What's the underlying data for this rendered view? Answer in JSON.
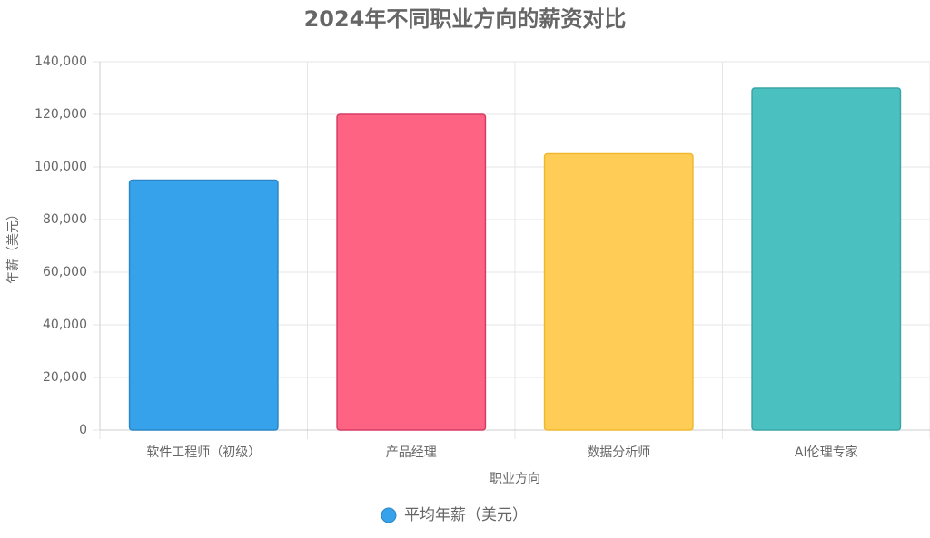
{
  "chart_data": {
    "type": "bar",
    "title": "2024年不同职业方向的薪资对比",
    "xlabel": "职业方向",
    "ylabel": "年薪（美元）",
    "categories": [
      "软件工程师（初级）",
      "产品经理",
      "数据分析师",
      "AI伦理专家"
    ],
    "series": [
      {
        "name": "平均年薪（美元）",
        "color": "#36a2eb",
        "colors": [
          "#36a2eb",
          "#ff6384",
          "#ffcd56",
          "#4bc0c0"
        ],
        "border_colors": [
          "#2b86c5",
          "#d63c63",
          "#f0b82e",
          "#3aa5a5"
        ],
        "values": [
          95000,
          120000,
          105000,
          130000
        ]
      }
    ],
    "ylim": [
      0,
      140000
    ],
    "yticks": [
      0,
      {
        "value": 20000,
        "label": "20,000"
      },
      {
        "value": 40000,
        "label": "40,000"
      },
      {
        "value": 60000,
        "label": "60,000"
      },
      {
        "value": 80000,
        "label": "80,000"
      },
      {
        "value": 100000,
        "label": "100,000"
      },
      {
        "value": 120000,
        "label": "120,000"
      },
      {
        "value": 140000,
        "label": "140,000"
      }
    ],
    "grid": true,
    "legend": "bottom"
  }
}
